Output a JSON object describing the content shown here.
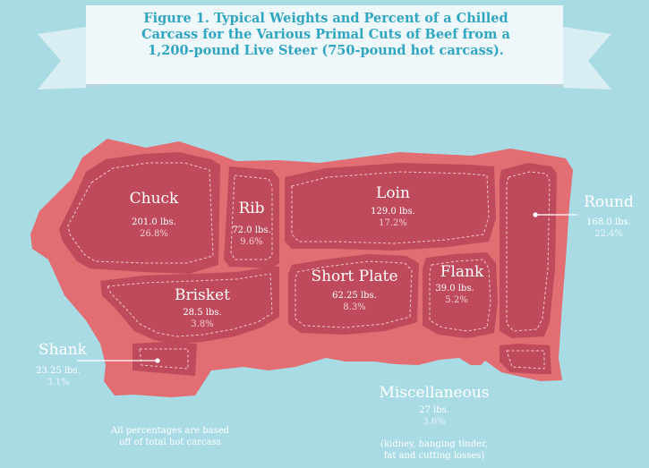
{
  "title": {
    "line1": "Figure 1.  Typical Weights and Percent of a Chilled",
    "line2": "Carcass for the Various Primal Cuts of Beef from a",
    "line3": "1,200-pound Live Steer (750-pound hot carcass)."
  },
  "colors": {
    "background": "#a9dbe5",
    "banner": "#eef8fa",
    "banner_ribbon": "#d8eef3",
    "carcass_outer": "#e26d72",
    "cut_fill": "#bf4a5c",
    "title_text": "#2fa5c1"
  },
  "cuts": {
    "chuck": {
      "name": "Chuck",
      "weight": "201.0 lbs.",
      "percent": "26.8%"
    },
    "rib": {
      "name": "Rib",
      "weight": "72.0 lbs.",
      "percent": "9.6%"
    },
    "loin": {
      "name": "Loin",
      "weight": "129.0 lbs.",
      "percent": "17.2%"
    },
    "brisket": {
      "name": "Brisket",
      "weight": "28.5 lbs.",
      "percent": "3.8%"
    },
    "short_plate": {
      "name": "Short Plate",
      "weight": "62.25 lbs.",
      "percent": "8.3%"
    },
    "flank": {
      "name": "Flank",
      "weight": "39.0 lbs.",
      "percent": "5.2%"
    },
    "round": {
      "name": "Round",
      "weight": "168.0 lbs.",
      "percent": "22.4%"
    },
    "shank": {
      "name": "Shank",
      "weight": "23.25 lbs.",
      "percent": "3.1%"
    },
    "miscellaneous": {
      "name": "Miscellaneous",
      "weight": "27 lbs.",
      "percent": "3.6%",
      "note_line1": "(kidney, hanging tinder,",
      "note_line2": "fat and cutting losses)"
    }
  },
  "footnote": {
    "line1": "All percentages are based",
    "line2": "off of total hot carcass"
  }
}
